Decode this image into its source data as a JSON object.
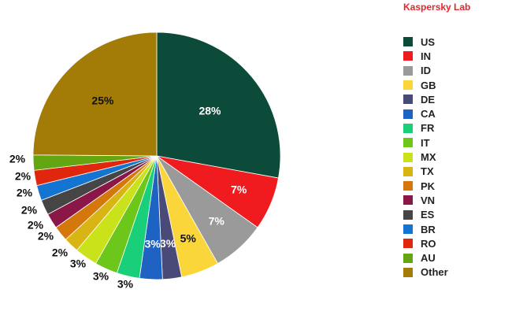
{
  "brand": {
    "text": "Kaspersky Lab",
    "color": "#e5262c"
  },
  "chart_data": {
    "type": "pie",
    "start_angle_deg": 0,
    "direction": "clockwise",
    "slices": [
      {
        "label": "US",
        "value": 28,
        "display": "28%",
        "color": "#0c4b3a",
        "label_color": "#ffffff"
      },
      {
        "label": "IN",
        "value": 7,
        "display": "7%",
        "color": "#ef1b1e",
        "label_color": "#ffffff"
      },
      {
        "label": "ID",
        "value": 7,
        "display": "7%",
        "color": "#9a9a9a",
        "label_color": "#ffffff"
      },
      {
        "label": "GB",
        "value": 5,
        "display": "5%",
        "color": "#fad63b",
        "label_color": "#111111"
      },
      {
        "label": "DE",
        "value": 2.5,
        "display": "3%",
        "color": "#4a4a78",
        "label_color": "#ffffff"
      },
      {
        "label": "CA",
        "value": 3,
        "display": "3%",
        "color": "#1e62c4",
        "label_color": "#ffffff"
      },
      {
        "label": "FR",
        "value": 3,
        "display": "3%",
        "color": "#19cf7a",
        "label_color": "#111111"
      },
      {
        "label": "IT",
        "value": 3,
        "display": "3%",
        "color": "#6dc61a",
        "label_color": "#111111"
      },
      {
        "label": "MX",
        "value": 3,
        "display": "3%",
        "color": "#c9e21a",
        "label_color": "#111111"
      },
      {
        "label": "TX",
        "value": 2,
        "display": "2%",
        "color": "#d8b414",
        "label_color": "#111111"
      },
      {
        "label": "PK",
        "value": 2,
        "display": "2%",
        "color": "#d4780b",
        "label_color": "#111111"
      },
      {
        "label": "VN",
        "value": 2,
        "display": "2%",
        "color": "#8a1748",
        "label_color": "#111111"
      },
      {
        "label": "ES",
        "value": 2,
        "display": "2%",
        "color": "#454545",
        "label_color": "#111111"
      },
      {
        "label": "BR",
        "value": 2,
        "display": "2%",
        "color": "#1374d1",
        "label_color": "#111111"
      },
      {
        "label": "RO",
        "value": 2,
        "display": "2%",
        "color": "#e0260c",
        "label_color": "#111111"
      },
      {
        "label": "AU",
        "value": 2,
        "display": "2%",
        "color": "#64a512",
        "label_color": "#111111"
      },
      {
        "label": "Other",
        "value": 25,
        "display": "25%",
        "color": "#a27c07",
        "label_color": "#111111"
      }
    ],
    "legend_position": "right"
  }
}
